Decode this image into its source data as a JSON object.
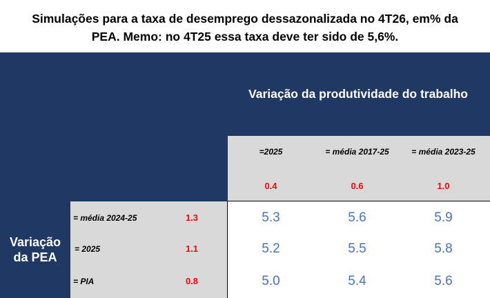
{
  "title": {
    "line1": "Simulações para a taxa de desemprego dessazonalizada no 4T26, em% da",
    "line2": "PEA. Memo: no 4T25 essa taxa deve ter sido de 5,6%."
  },
  "column_header": "Variação da produtividade do trabalho",
  "row_header": {
    "line1": "Variação",
    "line2": "da PEA"
  },
  "columns": [
    {
      "label": "=2025",
      "value": "0.4"
    },
    {
      "label": "= média 2017-25",
      "value": "0.6"
    },
    {
      "label": "= média 2023-25",
      "value": "1.0"
    }
  ],
  "rows": [
    {
      "label": "= média 2024-25",
      "value": "1.3",
      "cells": [
        "5.3",
        "5.6",
        "5.9"
      ]
    },
    {
      "label": "= 2025",
      "value": "1.1",
      "cells": [
        "5.2",
        "5.5",
        "5.8"
      ]
    },
    {
      "label": "= PIA",
      "value": "0.8",
      "cells": [
        "5.0",
        "5.4",
        "5.6"
      ]
    }
  ],
  "colors": {
    "header_background": "#1f3864",
    "label_background": "#d9d9d9",
    "driver_values": "#ff0000",
    "result_values": "#4472c4"
  }
}
